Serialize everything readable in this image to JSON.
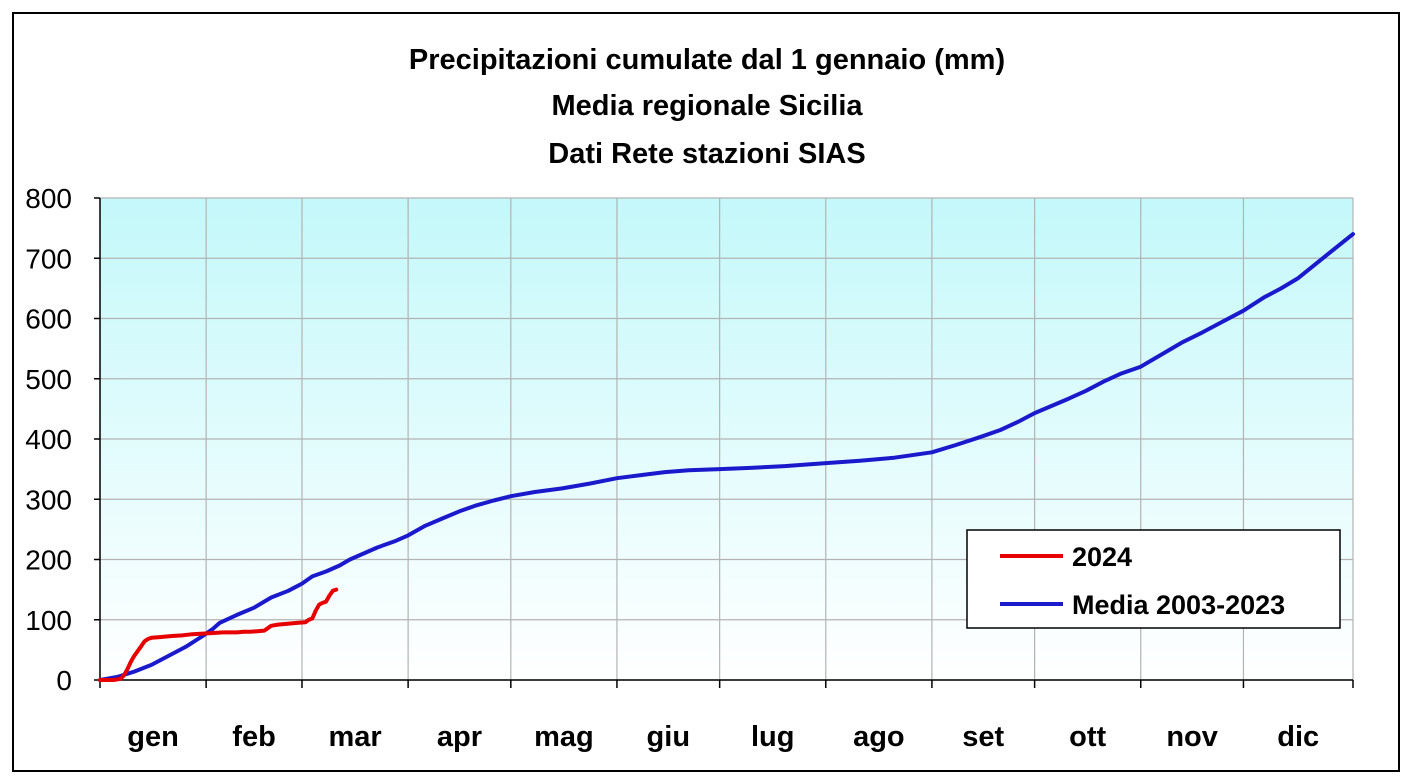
{
  "chart_data": {
    "type": "line",
    "title": "Precipitazioni cumulate dal 1 gennaio (mm)",
    "subtitle": [
      "Media regionale Sicilia",
      "Dati Rete stazioni SIAS"
    ],
    "xlabel": "",
    "ylabel": "",
    "ylim": [
      0,
      800
    ],
    "yticks": [
      0,
      100,
      200,
      300,
      400,
      500,
      600,
      700,
      800
    ],
    "xlim": [
      0,
      366
    ],
    "months": [
      "gen",
      "feb",
      "mar",
      "apr",
      "mag",
      "giu",
      "lug",
      "ago",
      "set",
      "ott",
      "nov",
      "dic"
    ],
    "month_starts": [
      0,
      31,
      59,
      90,
      120,
      151,
      181,
      212,
      243,
      273,
      304,
      334
    ],
    "grid": true,
    "legend_position": "bottom-right",
    "series": [
      {
        "name": "2024",
        "color": "#e60000",
        "points": [
          [
            0,
            0
          ],
          [
            2,
            0
          ],
          [
            4,
            0
          ],
          [
            6,
            2
          ],
          [
            7,
            8
          ],
          [
            8,
            18
          ],
          [
            9,
            30
          ],
          [
            10,
            40
          ],
          [
            11,
            48
          ],
          [
            12,
            56
          ],
          [
            13,
            64
          ],
          [
            14,
            68
          ],
          [
            15,
            70
          ],
          [
            17,
            71
          ],
          [
            19,
            72
          ],
          [
            21,
            73
          ],
          [
            24,
            74
          ],
          [
            27,
            76
          ],
          [
            30,
            77
          ],
          [
            33,
            78
          ],
          [
            36,
            79
          ],
          [
            38,
            79
          ],
          [
            40,
            79
          ],
          [
            42,
            80
          ],
          [
            44,
            80
          ],
          [
            46,
            81
          ],
          [
            48,
            82
          ],
          [
            49,
            86
          ],
          [
            50,
            90
          ],
          [
            52,
            92
          ],
          [
            54,
            93
          ],
          [
            56,
            94
          ],
          [
            58,
            95
          ],
          [
            60,
            96
          ],
          [
            61,
            100
          ],
          [
            62,
            102
          ],
          [
            63,
            115
          ],
          [
            64,
            125
          ],
          [
            65,
            128
          ],
          [
            66,
            130
          ],
          [
            67,
            140
          ],
          [
            68,
            148
          ],
          [
            69,
            150
          ]
        ]
      },
      {
        "name": "Media 2003-2023",
        "color": "#1a1acc",
        "points": [
          [
            0,
            0
          ],
          [
            5,
            5
          ],
          [
            10,
            14
          ],
          [
            15,
            25
          ],
          [
            20,
            40
          ],
          [
            25,
            55
          ],
          [
            30,
            73
          ],
          [
            33,
            85
          ],
          [
            35,
            95
          ],
          [
            40,
            108
          ],
          [
            45,
            120
          ],
          [
            50,
            137
          ],
          [
            55,
            148
          ],
          [
            59,
            160
          ],
          [
            62,
            172
          ],
          [
            66,
            180
          ],
          [
            70,
            190
          ],
          [
            73,
            200
          ],
          [
            77,
            210
          ],
          [
            81,
            220
          ],
          [
            86,
            230
          ],
          [
            90,
            240
          ],
          [
            95,
            256
          ],
          [
            100,
            268
          ],
          [
            105,
            280
          ],
          [
            110,
            290
          ],
          [
            115,
            298
          ],
          [
            120,
            305
          ],
          [
            127,
            312
          ],
          [
            135,
            318
          ],
          [
            143,
            326
          ],
          [
            151,
            335
          ],
          [
            158,
            340
          ],
          [
            165,
            345
          ],
          [
            172,
            348
          ],
          [
            181,
            350
          ],
          [
            190,
            352
          ],
          [
            200,
            355
          ],
          [
            212,
            360
          ],
          [
            222,
            364
          ],
          [
            232,
            369
          ],
          [
            243,
            378
          ],
          [
            250,
            390
          ],
          [
            257,
            403
          ],
          [
            263,
            415
          ],
          [
            268,
            428
          ],
          [
            273,
            443
          ],
          [
            278,
            455
          ],
          [
            283,
            467
          ],
          [
            288,
            480
          ],
          [
            293,
            495
          ],
          [
            298,
            508
          ],
          [
            304,
            520
          ],
          [
            310,
            540
          ],
          [
            316,
            560
          ],
          [
            322,
            577
          ],
          [
            328,
            595
          ],
          [
            334,
            613
          ],
          [
            340,
            635
          ],
          [
            345,
            650
          ],
          [
            350,
            667
          ],
          [
            355,
            690
          ],
          [
            360,
            713
          ],
          [
            366,
            740
          ]
        ]
      }
    ]
  }
}
